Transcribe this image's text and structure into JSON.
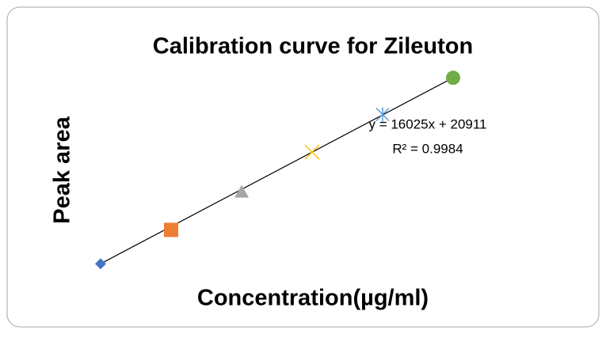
{
  "chart_data": {
    "type": "scatter",
    "title": "Calibration curve for Zileuton",
    "xlabel": "Concentration(µg/ml)",
    "ylabel": "Peak area",
    "x": [
      10,
      20,
      30,
      40,
      50,
      60
    ],
    "values": [
      181000,
      327000,
      490000,
      662000,
      824000,
      982000
    ],
    "colors": [
      "#4472c4",
      "#ed7d31",
      "#a5a5a5",
      "#ffc000",
      "#5b9bd5",
      "#70ad47"
    ],
    "markers": [
      "diamond",
      "square",
      "triangle",
      "x",
      "star",
      "circle"
    ],
    "xlim": [
      0,
      70
    ],
    "ylim": [
      100000,
      1000000
    ],
    "trendline": {
      "equation": "y = 16025x + 20911",
      "r_squared": "R² = 0.9984",
      "slope": 16025,
      "intercept": 20911,
      "color": "#000000"
    }
  }
}
